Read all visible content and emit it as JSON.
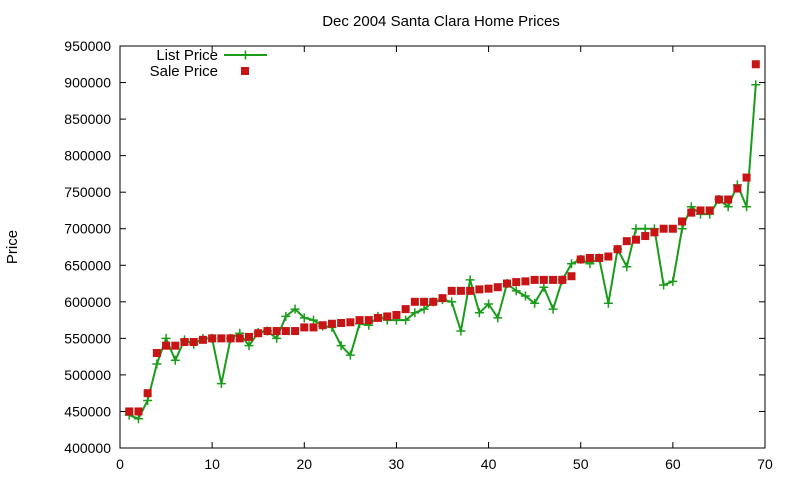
{
  "chart_data": {
    "type": "line",
    "title": "Dec 2004 Santa Clara Home Prices",
    "xlabel": "",
    "ylabel": "Price",
    "xlim": [
      0,
      70
    ],
    "ylim": [
      400000,
      950000
    ],
    "xticks": [
      0,
      10,
      20,
      30,
      40,
      50,
      60,
      70
    ],
    "yticks": [
      400000,
      450000,
      500000,
      550000,
      600000,
      650000,
      700000,
      750000,
      800000,
      850000,
      900000,
      950000
    ],
    "legend_position": "top-left",
    "grid": false,
    "x": [
      1,
      2,
      3,
      4,
      5,
      6,
      7,
      8,
      9,
      10,
      11,
      12,
      13,
      14,
      15,
      16,
      17,
      18,
      19,
      20,
      21,
      22,
      23,
      24,
      25,
      26,
      27,
      28,
      29,
      30,
      31,
      32,
      33,
      34,
      35,
      36,
      37,
      38,
      39,
      40,
      41,
      42,
      43,
      44,
      45,
      46,
      47,
      48,
      49,
      50,
      51,
      52,
      53,
      54,
      55,
      56,
      57,
      58,
      59,
      60,
      61,
      62,
      63,
      64,
      65,
      66,
      67,
      68,
      69
    ],
    "series": [
      {
        "name": "List Price",
        "style": "line-plus",
        "color": "#1a9c1a",
        "values": [
          445000,
          440000,
          465000,
          515000,
          550000,
          520000,
          548000,
          542000,
          550000,
          550000,
          488000,
          550000,
          557000,
          540000,
          558000,
          560000,
          550000,
          580000,
          590000,
          578000,
          575000,
          567000,
          565000,
          540000,
          527000,
          570000,
          568000,
          580000,
          575000,
          575000,
          575000,
          585000,
          590000,
          600000,
          603000,
          600000,
          560000,
          630000,
          585000,
          597000,
          578000,
          625000,
          615000,
          608000,
          598000,
          620000,
          590000,
          630000,
          652000,
          658000,
          652000,
          660000,
          598000,
          672000,
          648000,
          700000,
          700000,
          700000,
          623000,
          628000,
          700000,
          730000,
          720000,
          720000,
          740000,
          730000,
          760000,
          730000,
          897000
        ]
      },
      {
        "name": "Sale Price",
        "style": "square",
        "color": "#c81414",
        "values": [
          450000,
          450000,
          475000,
          530000,
          540000,
          540000,
          545000,
          545000,
          548000,
          550000,
          550000,
          550000,
          550000,
          552000,
          557000,
          560000,
          560000,
          560000,
          560000,
          565000,
          565000,
          568000,
          570000,
          571000,
          572000,
          575000,
          575000,
          578000,
          580000,
          582000,
          590000,
          600000,
          600000,
          600000,
          605000,
          615000,
          615000,
          615000,
          617000,
          618000,
          620000,
          625000,
          627000,
          628000,
          630000,
          630000,
          630000,
          630000,
          635000,
          658000,
          660000,
          660000,
          662000,
          672000,
          683000,
          685000,
          690000,
          695000,
          700000,
          700000,
          710000,
          722000,
          725000,
          725000,
          740000,
          740000,
          755000,
          770000,
          925000
        ]
      }
    ]
  }
}
